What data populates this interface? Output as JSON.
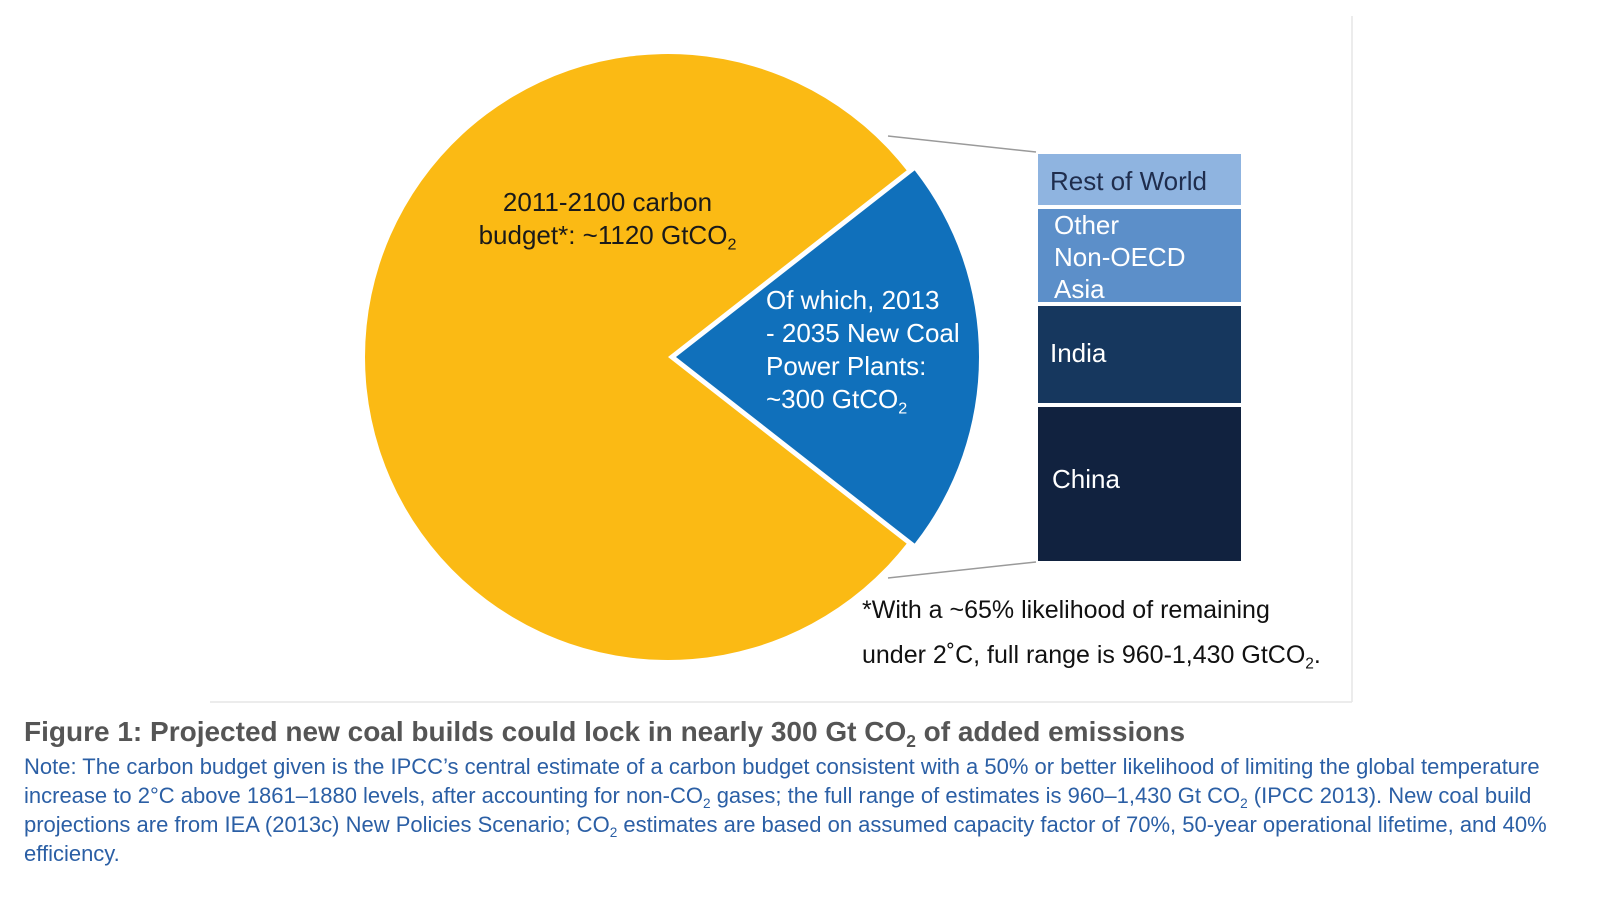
{
  "chart_data": {
    "type": "pie",
    "slices": [
      {
        "label": "2011-2100 carbon budget*:  ~1120 GtCO2",
        "value": 1120,
        "color": "#FBBA14"
      },
      {
        "label": "Of which, 2013 - 2035 New Coal Power Plants: ~300 GtCO2",
        "value": 300,
        "color": "#1070BB"
      }
    ],
    "breakdown": {
      "type": "stacked-bar",
      "segments": [
        {
          "label": "China",
          "color": "#11223F"
        },
        {
          "label": "India",
          "color": "#16375E"
        },
        {
          "label": "Other Non-OECD Asia",
          "color": "#5C8FC9"
        },
        {
          "label": "Rest of World",
          "color": "#8FB4E0"
        }
      ]
    }
  },
  "labels": {
    "budget_line1": "2011-2100 carbon",
    "budget_line2a": "budget*:  ~1120 GtCO",
    "budget_sub": "2",
    "coal_line1": "Of which, 2013",
    "coal_line2": "- 2035 New Coal",
    "coal_line3": "Power Plants:",
    "coal_line4a": "~300 GtCO",
    "coal_sub": "2",
    "seg_rest": "Rest of World",
    "seg_other_1": "Other",
    "seg_other_2": "Non-OECD",
    "seg_other_3": "Asia",
    "seg_india": "India",
    "seg_china": "China"
  },
  "footnote": {
    "line1": "*With a ~65% likelihood of remaining",
    "line2a": "under 2˚C, full range is 960-1,430 GtCO",
    "line2_sub": "2",
    "line2b": "."
  },
  "caption": {
    "part1": "Figure 1: Projected new coal builds could lock in nearly 300 Gt CO",
    "sub": "2",
    "part2": " of added emissions"
  },
  "note": {
    "t1": "Note: The carbon budget given is the IPCC’s central estimate of a carbon budget consistent with a 50% or better likelihood of limiting the global temperature increase to 2°C above 1861–1880 levels, after accounting for non-CO",
    "s1": "2",
    "t2": " gases; the full range of estimates is 960–1,430 Gt CO",
    "s2": "2",
    "t3": " (IPCC 2013). New coal build projections are from IEA (2013c) New Policies Scenario; CO",
    "s3": "2",
    "t4": " estimates are based on assumed capacity factor of 70%, 50-year operational lifetime, and 40% efficiency."
  }
}
